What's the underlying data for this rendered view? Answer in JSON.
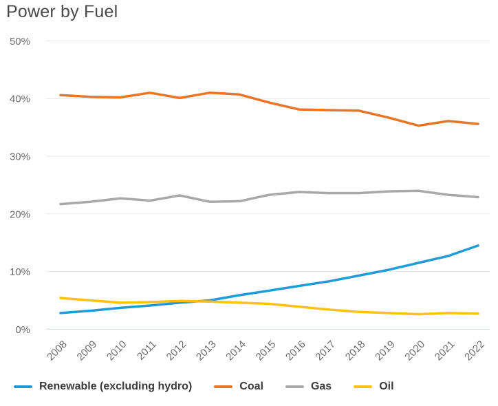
{
  "title": "Power by Fuel",
  "colors": {
    "background": "#ffffff",
    "title_text": "#4a4a4a",
    "axis_tick_text": "#6b6b6b",
    "grid_line": "#e6e6e6",
    "zero_line": "#cfdae2",
    "legend_text": "#3a3a3a"
  },
  "chart_data": {
    "type": "line",
    "title": "Power by Fuel",
    "xlabel": "",
    "ylabel": "",
    "ylim": [
      0,
      50
    ],
    "grid": true,
    "legend_position": "bottom",
    "x": [
      "2008",
      "2009",
      "2010",
      "2011",
      "2012",
      "2013",
      "2014",
      "2015",
      "2016",
      "2017",
      "2018",
      "2019",
      "2020",
      "2021",
      "2022"
    ],
    "y_ticks": [
      {
        "label": "0%",
        "value": 0
      },
      {
        "label": "10%",
        "value": 10
      },
      {
        "label": "20%",
        "value": 20
      },
      {
        "label": "30%",
        "value": 30
      },
      {
        "label": "40%",
        "value": 40
      },
      {
        "label": "50%",
        "value": 50
      }
    ],
    "series": [
      {
        "name": "Renewable (excluding hydro)",
        "color": "#1f9bd7",
        "values": [
          2.8,
          3.2,
          3.7,
          4.1,
          4.6,
          5.0,
          5.9,
          6.7,
          7.5,
          8.3,
          9.3,
          10.3,
          11.5,
          12.7,
          14.5
        ]
      },
      {
        "name": "Coal",
        "color": "#eb7524",
        "values": [
          40.6,
          40.3,
          40.2,
          41.0,
          40.1,
          41.0,
          40.7,
          39.3,
          38.1,
          38.0,
          37.9,
          36.7,
          35.3,
          36.1,
          35.6
        ]
      },
      {
        "name": "Gas",
        "color": "#a8a8a8",
        "values": [
          21.7,
          22.1,
          22.7,
          22.3,
          23.2,
          22.1,
          22.2,
          23.3,
          23.8,
          23.6,
          23.6,
          23.9,
          24.0,
          23.3,
          22.9
        ]
      },
      {
        "name": "Oil",
        "color": "#fdc211",
        "values": [
          5.4,
          5.0,
          4.6,
          4.7,
          4.9,
          4.8,
          4.6,
          4.4,
          3.9,
          3.4,
          3.0,
          2.8,
          2.6,
          2.8,
          2.7
        ]
      }
    ]
  }
}
